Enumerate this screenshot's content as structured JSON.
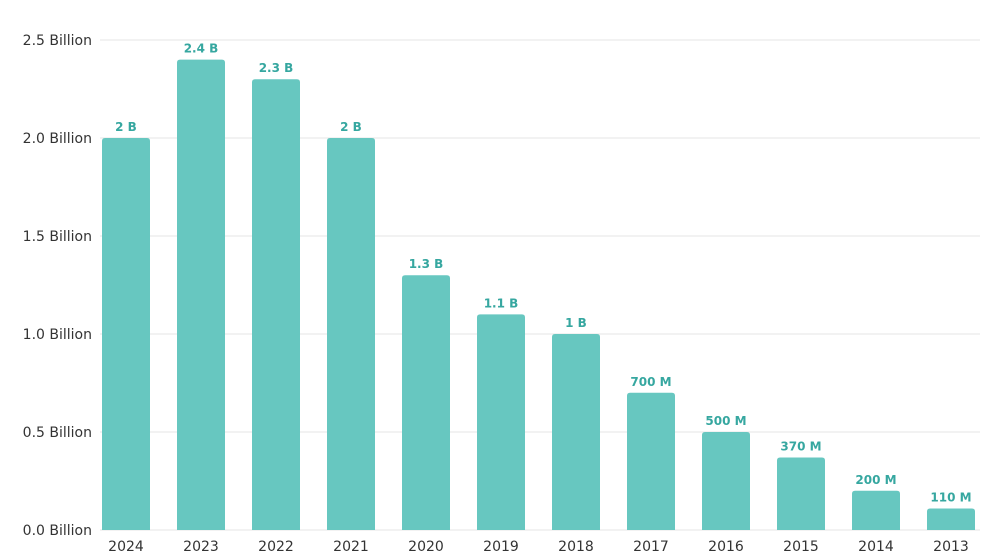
{
  "colors": {
    "bar": "#67c7c0",
    "data_label": "#36a7a0",
    "gridline": "#e6e6e6",
    "tick_text": "#333333"
  },
  "chart_data": {
    "type": "bar",
    "title": "",
    "xlabel": "",
    "ylabel": "",
    "categories": [
      "2024",
      "2023",
      "2022",
      "2021",
      "2020",
      "2019",
      "2018",
      "2017",
      "2016",
      "2015",
      "2014",
      "2013"
    ],
    "values": [
      2.0,
      2.4,
      2.3,
      2.0,
      1.3,
      1.1,
      1.0,
      0.7,
      0.5,
      0.37,
      0.2,
      0.11
    ],
    "value_unit": "Billion",
    "data_labels": [
      "2 B",
      "2.4 B",
      "2.3 B",
      "2 B",
      "1.3 B",
      "1.1 B",
      "1 B",
      "700 M",
      "500 M",
      "370 M",
      "200 M",
      "110 M"
    ],
    "ylim": [
      0,
      2.5
    ],
    "yticks": [
      0.0,
      0.5,
      1.0,
      1.5,
      2.0,
      2.5
    ],
    "ytick_labels": [
      "0.0 Billion",
      "0.5 Billion",
      "1.0 Billion",
      "1.5 Billion",
      "2.0 Billion",
      "2.5 Billion"
    ],
    "grid": true,
    "legend": "none"
  }
}
